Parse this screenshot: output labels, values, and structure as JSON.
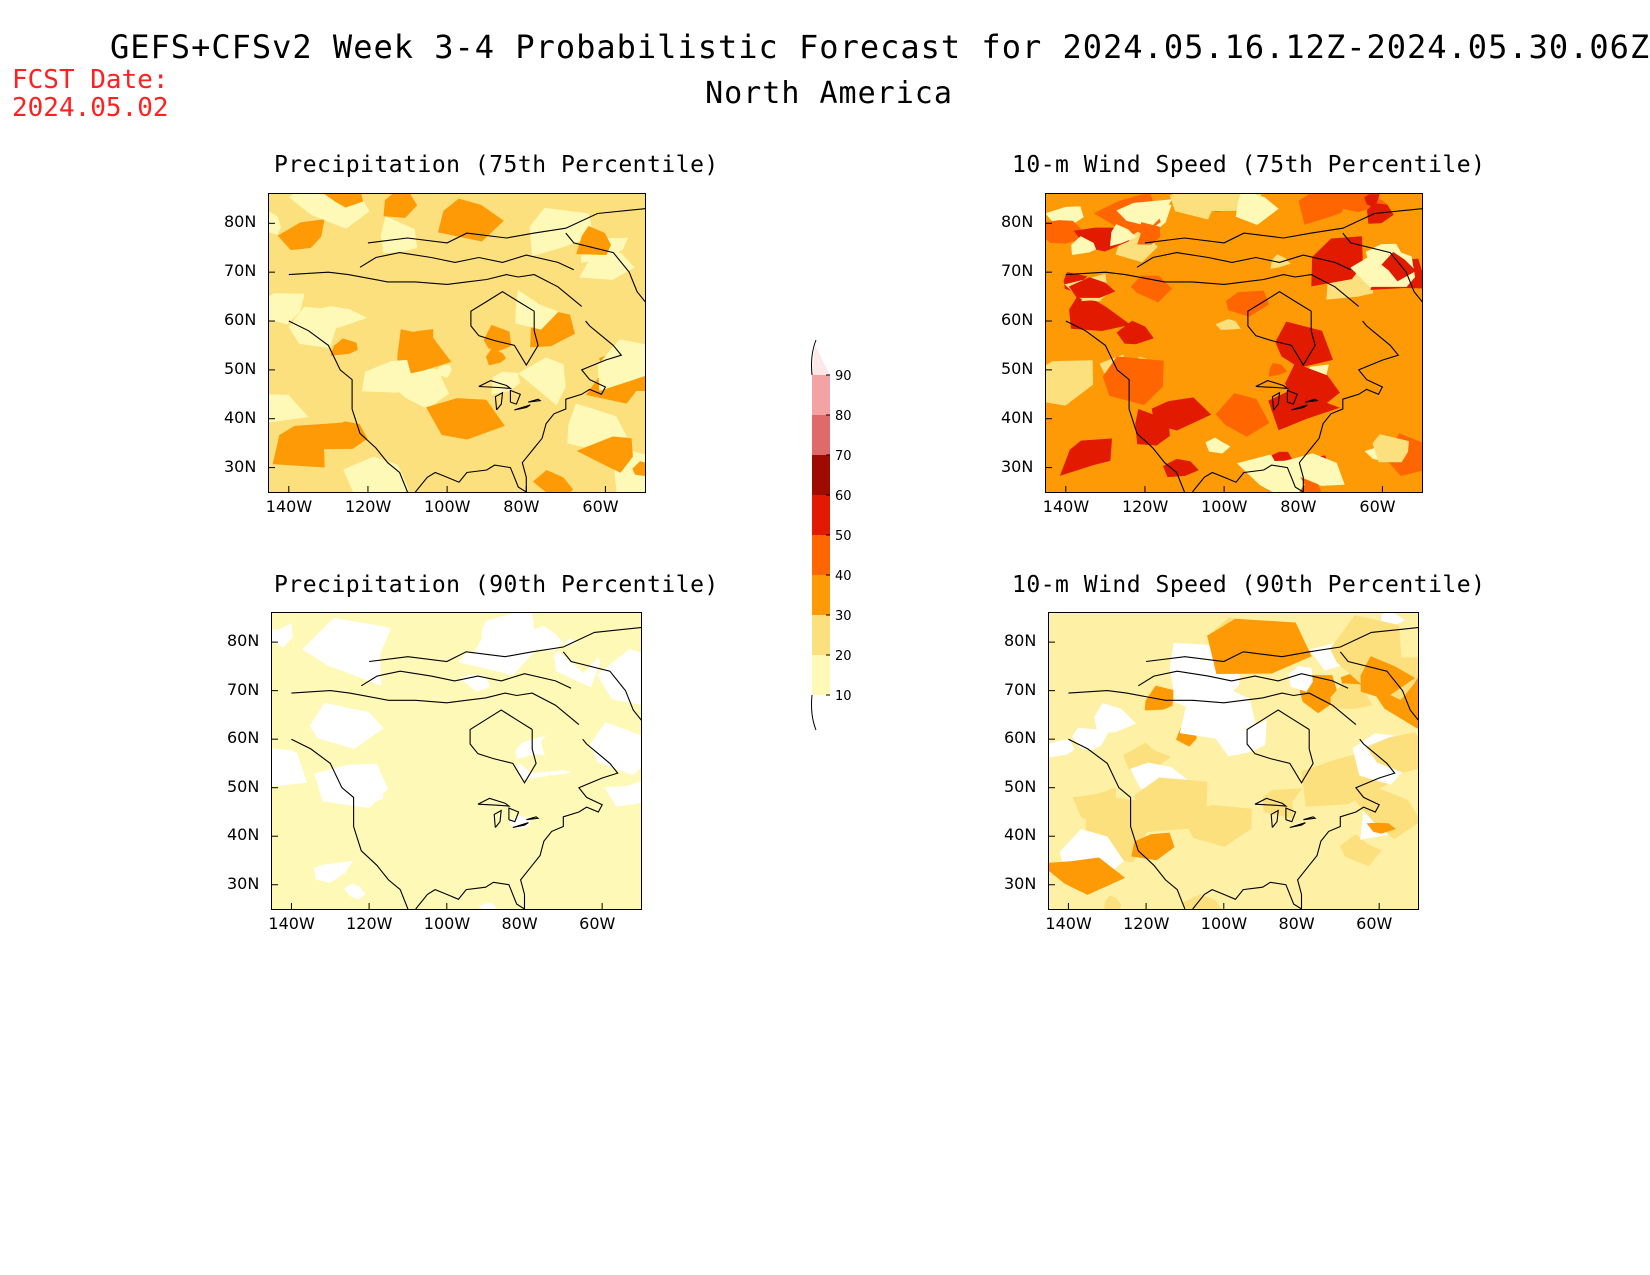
{
  "header": {
    "title": "GEFS+CFSv2 Week 3-4 Probabilistic Forecast for 2024.05.16.12Z-2024.05.30.06Z",
    "subtitle": "North America",
    "fcst_date_label": "FCST Date:",
    "fcst_date_value": "2024.05.02"
  },
  "lat_labels": [
    "80N",
    "70N",
    "60N",
    "50N",
    "40N",
    "30N"
  ],
  "lon_labels": [
    "140W",
    "120W",
    "100W",
    "80W",
    "60W"
  ],
  "panels": [
    {
      "title": "Precipitation (75th Percentile)",
      "base_color": "#fde07e",
      "dominant_bin": "20-30"
    },
    {
      "title": "10-m Wind Speed (75th Percentile)",
      "base_color": "#fd9a05",
      "dominant_bin": "30-40"
    },
    {
      "title": "Precipitation (90th Percentile)",
      "base_color": "#fff9b7",
      "dominant_bin": "10-20"
    },
    {
      "title": "10-m Wind Speed (90th Percentile)",
      "base_color": "#fef0a4",
      "dominant_bin": "10-20"
    }
  ],
  "colorbar": {
    "labels": [
      "90",
      "80",
      "70",
      "60",
      "50",
      "40",
      "30",
      "20",
      "10"
    ],
    "colors": [
      "#fde8e8",
      "#f3a3a3",
      "#de6a6a",
      "#a00b00",
      "#e21a00",
      "#ff6500",
      "#fd9a05",
      "#fde07e",
      "#fff9b7"
    ]
  }
}
